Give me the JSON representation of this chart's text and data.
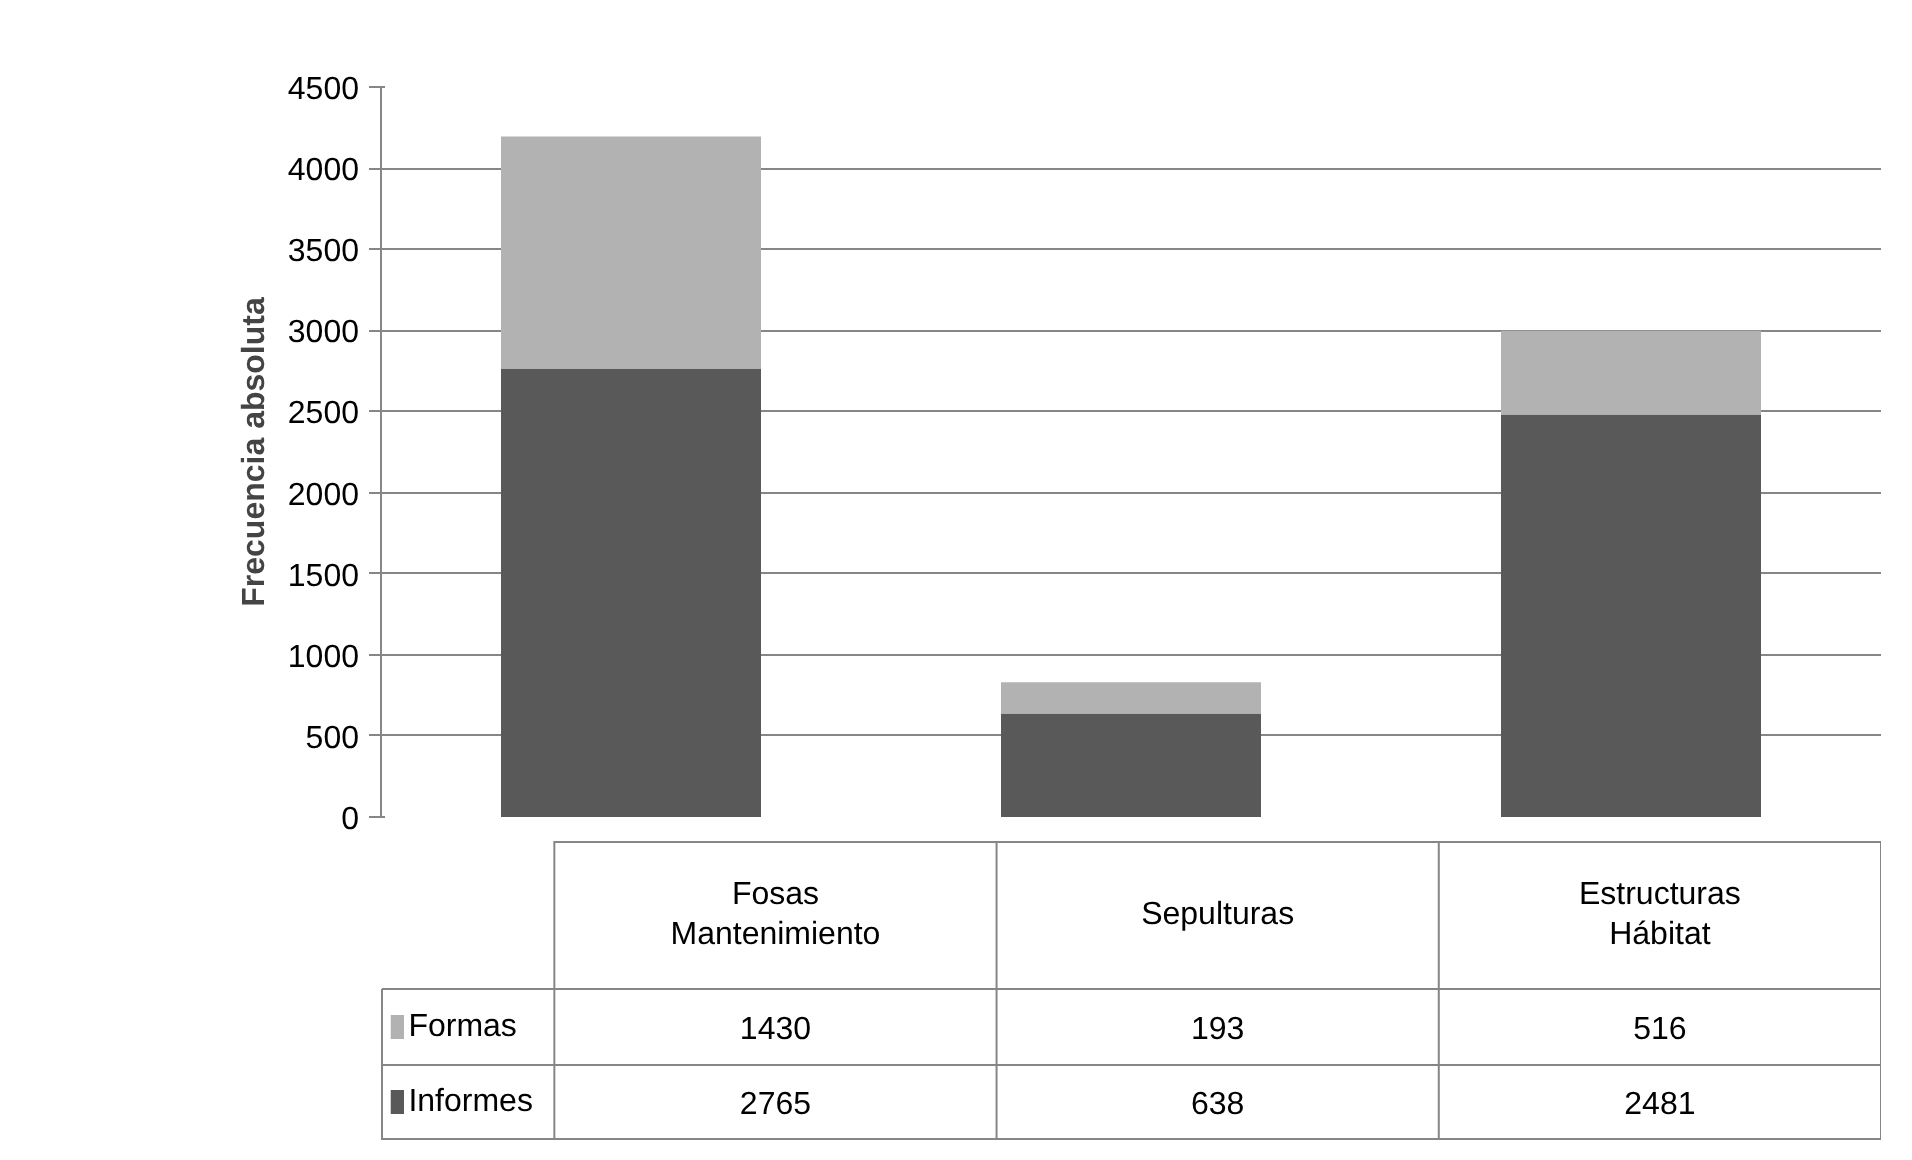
{
  "chart_data": {
    "type": "bar",
    "stacked": true,
    "ylabel": "Frecuencia absoluta",
    "categories": [
      "Fosas Mantenimiento",
      "Sepulturas",
      "Estructuras Hábitat"
    ],
    "series": [
      {
        "name": "Informes",
        "color": "#595959",
        "values": [
          2765,
          638,
          2481
        ]
      },
      {
        "name": "Formas",
        "color": "#b2b2b2",
        "values": [
          1430,
          193,
          516
        ]
      }
    ],
    "ylim": [
      0,
      4500
    ],
    "yticks": [
      0,
      500,
      1000,
      1500,
      2000,
      2500,
      3000,
      3500,
      4000,
      4500
    ],
    "grid": "y",
    "legend": "bottom",
    "data_labels": true
  }
}
